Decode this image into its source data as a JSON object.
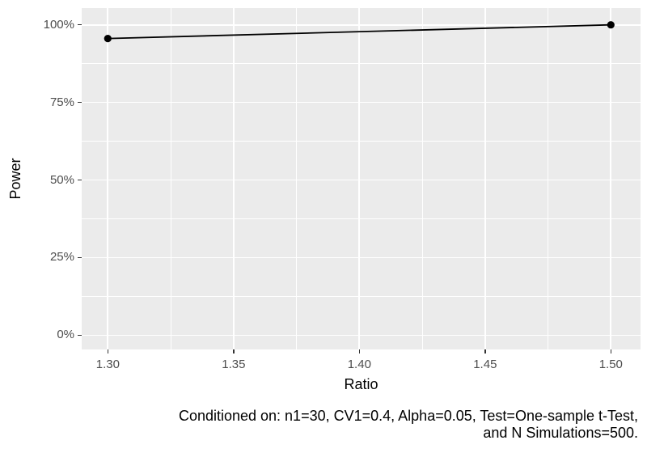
{
  "chart_data": {
    "type": "line",
    "title": "",
    "xlabel": "Ratio",
    "ylabel": "Power",
    "x": [
      1.3,
      1.5
    ],
    "series": [
      {
        "name": "Power",
        "unit": "%",
        "values": [
          95.6,
          100
        ]
      }
    ],
    "x_ticks": [
      1.3,
      1.35,
      1.4,
      1.45,
      1.5
    ],
    "x_tick_labels": [
      "1.30",
      "1.35",
      "1.40",
      "1.45",
      "1.50"
    ],
    "y_ticks": [
      0,
      25,
      50,
      75,
      100
    ],
    "y_tick_labels": [
      "0%",
      "25%",
      "50%",
      "75%",
      "100%"
    ],
    "xlim": [
      1.2896,
      1.5118
    ],
    "ylim": [
      -4.6,
      105.4
    ],
    "grid": "major+minor",
    "legend": "none",
    "caption_lines": [
      "Conditioned on: n1=30, CV1=0.4, Alpha=0.05, Test=One-sample t-Test,",
      "and N Simulations=500."
    ],
    "colors": {
      "background": "#FFFFFF",
      "panel_background": "#EBEBEB",
      "gridline": "#FFFFFF",
      "line": "#000000",
      "point": "#000000",
      "tick": "#333333",
      "tick_label": "#4D4D4D",
      "axis_title": "#000000",
      "caption": "#000000"
    }
  }
}
